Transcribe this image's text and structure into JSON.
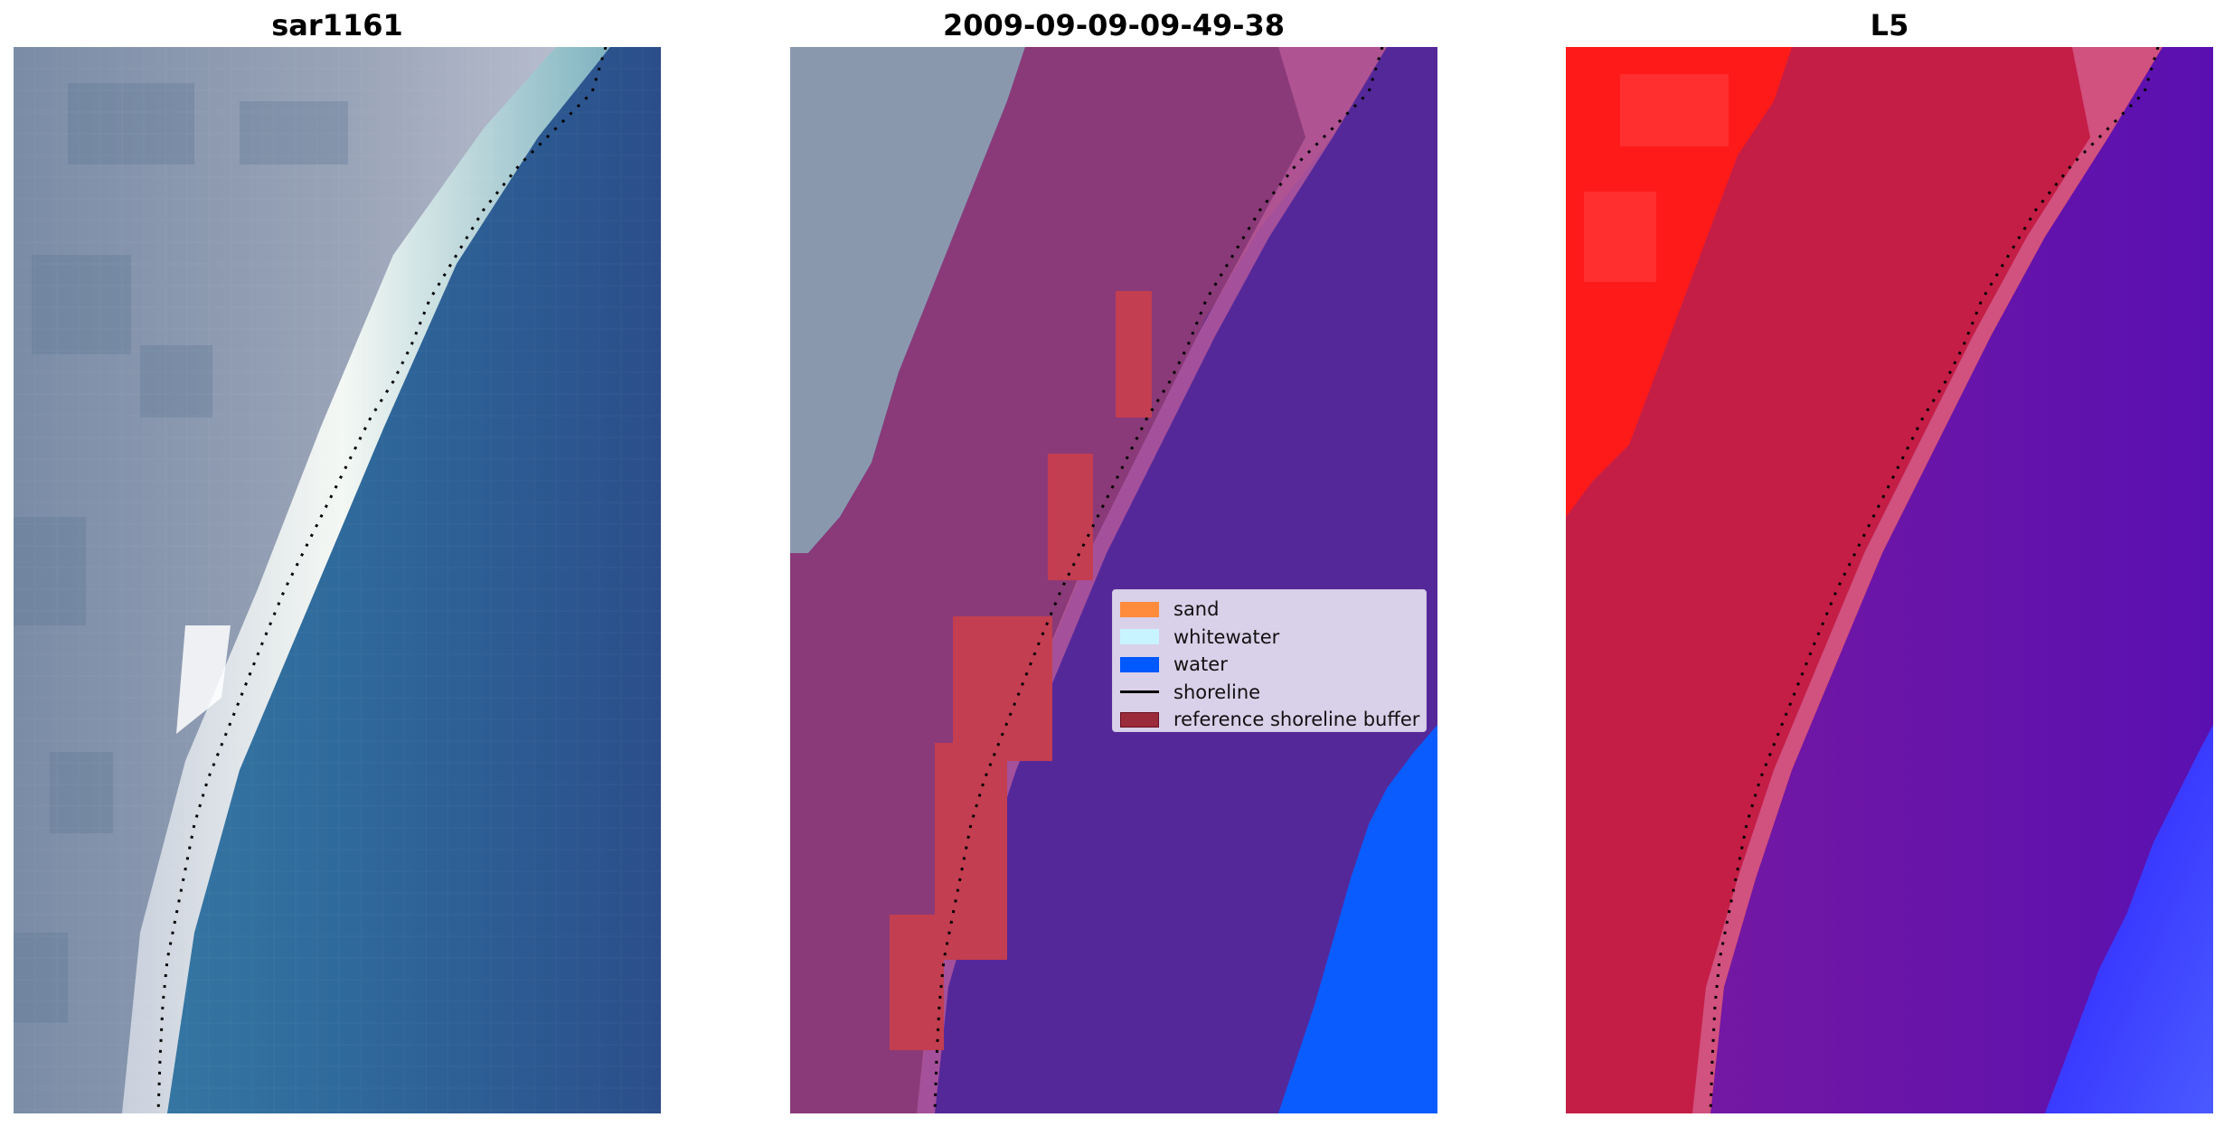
{
  "panels": [
    {
      "title": "sar1161",
      "kind": "rgb-satellite-image"
    },
    {
      "title": "2009-09-09-09-49-38",
      "kind": "classified-overlay"
    },
    {
      "title": "L5",
      "kind": "index-image"
    }
  ],
  "legend": {
    "items": [
      {
        "label": "sand",
        "color": "#ff8c3c",
        "style": "patch"
      },
      {
        "label": "whitewater",
        "color": "#c8f4ff",
        "style": "patch"
      },
      {
        "label": "water",
        "color": "#0058ff",
        "style": "patch"
      },
      {
        "label": "shoreline",
        "color": "#000000",
        "style": "line"
      },
      {
        "label": "reference shoreline buffer",
        "color": "#9b2a3a",
        "style": "patch"
      }
    ]
  },
  "colors": {
    "water_deep": "#2c5b92",
    "water_teal": "#3a7fa8",
    "land_gray": "#7f8fa6",
    "whitewater": "#e8f4f0",
    "overlay_purple": "#55289a",
    "overlay_land": "#8a3a78",
    "buffer_red": "#c33e50",
    "class_water": "#0a5cff",
    "index_red": "#ff1a1a",
    "index_crimson": "#c41e46",
    "index_violet": "#6a14a8",
    "index_blue": "#1a2cff"
  }
}
